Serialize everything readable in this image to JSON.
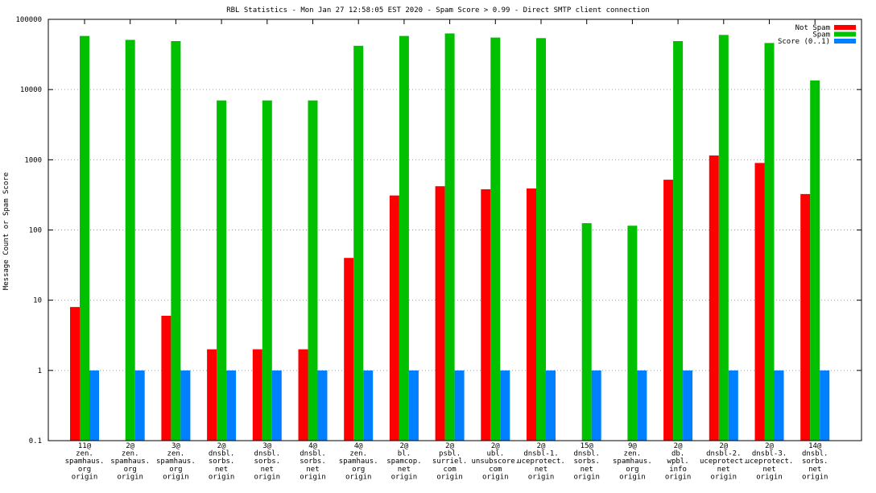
{
  "chart_data": {
    "type": "bar",
    "title": "RBL Statistics - Mon Jan 27 12:58:05 EST 2020 - Spam Score > 0.99 - Direct SMTP client connection",
    "xlabel": "",
    "ylabel": "Message Count or Spam Score",
    "yscale": "log",
    "ylim": [
      0.1,
      100000
    ],
    "yticks": [
      "0.1",
      "1",
      "10",
      "100",
      "1000",
      "10000",
      "100000"
    ],
    "grid": true,
    "legend_position": "top-right",
    "categories": [
      [
        "11@",
        "zen.",
        "spamhaus.",
        "org",
        "origin"
      ],
      [
        "2@",
        "zen.",
        "spamhaus.",
        "org",
        "origin"
      ],
      [
        "3@",
        "zen.",
        "spamhaus.",
        "org",
        "origin"
      ],
      [
        "2@",
        "dnsbl.",
        "sorbs.",
        "net",
        "origin"
      ],
      [
        "3@",
        "dnsbl.",
        "sorbs.",
        "net",
        "origin"
      ],
      [
        "4@",
        "dnsbl.",
        "sorbs.",
        "net",
        "origin"
      ],
      [
        "4@",
        "zen.",
        "spamhaus.",
        "org",
        "origin"
      ],
      [
        "2@",
        "bl.",
        "spamcop.",
        "net",
        "origin"
      ],
      [
        "2@",
        "psbl.",
        "surriel.",
        "com",
        "origin"
      ],
      [
        "2@",
        "ubl.",
        "unsubscore.",
        "com",
        "origin"
      ],
      [
        "2@",
        "dnsbl-1.",
        "uceprotect.",
        "net",
        "origin"
      ],
      [
        "15@",
        "dnsbl.",
        "sorbs.",
        "net",
        "origin"
      ],
      [
        "9@",
        "zen.",
        "spamhaus.",
        "org",
        "origin"
      ],
      [
        "2@",
        "db.",
        "wpbl.",
        "info",
        "origin"
      ],
      [
        "2@",
        "dnsbl-2.",
        "uceprotect.",
        "net",
        "origin"
      ],
      [
        "2@",
        "dnsbl-3.",
        "uceprotect.",
        "net",
        "origin"
      ],
      [
        "14@",
        "dnsbl.",
        "sorbs.",
        "net",
        "origin"
      ]
    ],
    "series": [
      {
        "name": "Not Spam",
        "color": "#ff0000",
        "values": [
          8,
          null,
          6,
          2,
          2,
          2,
          40,
          310,
          420,
          380,
          390,
          null,
          null,
          520,
          1150,
          900,
          325
        ]
      },
      {
        "name": "Spam",
        "color": "#00c000",
        "values": [
          58000,
          51000,
          49000,
          7000,
          7000,
          7000,
          42000,
          58000,
          63000,
          55000,
          54000,
          125,
          115,
          49000,
          60000,
          46000,
          13500
        ]
      },
      {
        "name": "Score (0..1)",
        "color": "#0080ff",
        "values": [
          1,
          1,
          1,
          1,
          1,
          1,
          1,
          1,
          1,
          1,
          1,
          1,
          1,
          1,
          1,
          1,
          1
        ]
      }
    ]
  }
}
